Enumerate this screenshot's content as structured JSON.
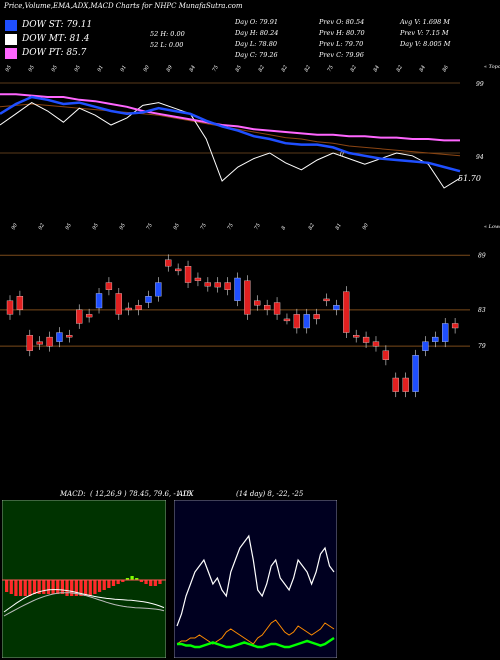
{
  "header": {
    "title": "Price,Volume,EMA,ADX,MACD Charts for NHPC MunafaSutra.com"
  },
  "legend": [
    {
      "label": "DOW ST: 79.11",
      "color": "#1f4fff"
    },
    {
      "label": "DOW MT: 81.4",
      "color": "#ffffff"
    },
    {
      "label": "DOW PT: 85.7",
      "color": "#ff66ff"
    }
  ],
  "stats": {
    "col1": [
      "",
      "52 H: 0.00",
      "52 L: 0.00"
    ],
    "col2": [
      "Day O: 79.91",
      "Day H: 80.24",
      "Day L: 78.80",
      "Day C: 79.26"
    ],
    "col3": [
      "Prev O: 80.54",
      "Prev H: 80.70",
      "Prev L: 79.70",
      "Prev C: 79.96"
    ],
    "col4": [
      "Avg V: 1.698 M",
      "Prev V: 7.15 M",
      "Day V: 8.005 M"
    ]
  },
  "ema_panel": {
    "top_labels": [
      "95",
      "95",
      "95",
      "95",
      "91",
      "91",
      "90",
      "89",
      "84",
      "75",
      "85",
      "82",
      "82",
      "82",
      "75",
      "82",
      "84",
      "82",
      "84",
      "86"
    ],
    "right_tag": "« Topo",
    "right_values": [
      "99",
      "51.70",
      "94"
    ],
    "bottom_tag": "0"
  },
  "candle_panel": {
    "top_labels": [
      "90",
      "92",
      "95",
      "95",
      "95",
      "75",
      "95",
      "75",
      "75",
      "75",
      "8",
      "82",
      "81",
      "90"
    ],
    "right_tag": "« Lowe",
    "right_values": [
      "89",
      "83",
      "79"
    ]
  },
  "macd": {
    "title": "MACD:",
    "params": "( 12,26,9 ) 78.45, 79.6, -1.15"
  },
  "adx": {
    "title": "ADX",
    "params": "(14 day) 8, -22, -25"
  },
  "chart_data": [
    {
      "type": "candlestick",
      "title": "Price",
      "right_axis_ticks": [
        89,
        83,
        79
      ],
      "ohlc": [
        {
          "o": 84.0,
          "c": 82.5,
          "color": "red"
        },
        {
          "o": 83.0,
          "c": 84.5,
          "color": "red"
        },
        {
          "o": 80.2,
          "c": 78.5,
          "color": "red"
        },
        {
          "o": 79.5,
          "c": 79.2,
          "color": "red"
        },
        {
          "o": 80.0,
          "c": 79.0,
          "color": "red"
        },
        {
          "o": 79.5,
          "c": 80.5,
          "color": "blue"
        },
        {
          "o": 80.0,
          "c": 80.2,
          "color": "red"
        },
        {
          "o": 83.0,
          "c": 81.5,
          "color": "red"
        },
        {
          "o": 82.5,
          "c": 82.2,
          "color": "red"
        },
        {
          "o": 83.2,
          "c": 84.8,
          "color": "blue"
        },
        {
          "o": 86.0,
          "c": 85.2,
          "color": "red"
        },
        {
          "o": 84.8,
          "c": 82.5,
          "color": "red"
        },
        {
          "o": 83.0,
          "c": 83.2,
          "color": "red"
        },
        {
          "o": 83.5,
          "c": 83.0,
          "color": "red"
        },
        {
          "o": 83.8,
          "c": 84.5,
          "color": "blue"
        },
        {
          "o": 84.5,
          "c": 86.0,
          "color": "blue"
        },
        {
          "o": 88.5,
          "c": 87.8,
          "color": "red"
        },
        {
          "o": 87.5,
          "c": 87.4,
          "color": "red"
        },
        {
          "o": 87.8,
          "c": 86.0,
          "color": "red"
        },
        {
          "o": 86.5,
          "c": 86.2,
          "color": "red"
        },
        {
          "o": 86.0,
          "c": 85.6,
          "color": "red"
        },
        {
          "o": 86.0,
          "c": 85.5,
          "color": "red"
        },
        {
          "o": 86.0,
          "c": 85.2,
          "color": "red"
        },
        {
          "o": 84.0,
          "c": 86.5,
          "color": "blue"
        },
        {
          "o": 86.2,
          "c": 82.5,
          "color": "red"
        },
        {
          "o": 84.0,
          "c": 83.5,
          "color": "red"
        },
        {
          "o": 83.5,
          "c": 83.0,
          "color": "red"
        },
        {
          "o": 83.8,
          "c": 82.5,
          "color": "red"
        },
        {
          "o": 82.0,
          "c": 82.0,
          "color": "red"
        },
        {
          "o": 82.5,
          "c": 81.0,
          "color": "red"
        },
        {
          "o": 81.0,
          "c": 82.5,
          "color": "blue"
        },
        {
          "o": 82.0,
          "c": 82.5,
          "color": "red"
        },
        {
          "o": 84.2,
          "c": 84.0,
          "color": "red"
        },
        {
          "o": 83.0,
          "c": 83.5,
          "color": "blue"
        },
        {
          "o": 85.0,
          "c": 80.5,
          "color": "red"
        },
        {
          "o": 80.2,
          "c": 80.0,
          "color": "red"
        },
        {
          "o": 80.0,
          "c": 79.4,
          "color": "red"
        },
        {
          "o": 79.5,
          "c": 79.0,
          "color": "red"
        },
        {
          "o": 78.5,
          "c": 77.5,
          "color": "red"
        },
        {
          "o": 75.5,
          "c": 74.0,
          "color": "red"
        },
        {
          "o": 75.5,
          "c": 74.0,
          "color": "red"
        },
        {
          "o": 74.0,
          "c": 78.0,
          "color": "blue"
        },
        {
          "o": 78.5,
          "c": 79.5,
          "color": "blue"
        },
        {
          "o": 80.0,
          "c": 79.5,
          "color": "blue"
        },
        {
          "o": 79.5,
          "c": 81.5,
          "color": "blue"
        },
        {
          "o": 81.5,
          "c": 81.0,
          "color": "red"
        }
      ]
    },
    {
      "type": "line",
      "title": "EMA",
      "right_axis_ticks": [
        99,
        94
      ],
      "series": [
        {
          "color": "#1f4fff",
          "values": [
            96.8,
            97.5,
            98.0,
            97.8,
            97.5,
            97.6,
            97.3,
            97.0,
            96.8,
            96.9,
            97.2,
            97.0,
            96.8,
            96.3,
            95.9,
            95.6,
            95.2,
            95.0,
            94.7,
            94.6,
            94.6,
            94.4,
            94.0,
            93.8,
            93.6,
            93.5,
            93.4,
            93.3,
            93.0,
            92.7
          ]
        },
        {
          "color": "#ff66ff",
          "values": [
            98.2,
            98.2,
            98.1,
            98.0,
            98.0,
            97.8,
            97.7,
            97.5,
            97.3,
            97.0,
            96.8,
            96.6,
            96.4,
            96.2,
            96.0,
            95.9,
            95.7,
            95.6,
            95.5,
            95.4,
            95.3,
            95.3,
            95.2,
            95.2,
            95.1,
            95.1,
            95.0,
            95.0,
            94.9,
            94.9
          ]
        },
        {
          "color": "#ffffff",
          "values": [
            96.0,
            96.8,
            97.6,
            97.0,
            96.2,
            97.2,
            96.7,
            96.0,
            96.5,
            97.4,
            97.6,
            97.2,
            96.8,
            95.0,
            92.0,
            93.0,
            93.6,
            94.0,
            93.3,
            92.8,
            93.5,
            94.0,
            93.6,
            93.2,
            93.6,
            94.0,
            93.8,
            93.2,
            91.5,
            92.2
          ]
        },
        {
          "color": "#8b4513",
          "values": [
            97.3,
            97.4,
            97.5,
            97.4,
            97.3,
            97.2,
            97.1,
            97.0,
            96.9,
            96.8,
            96.7,
            96.5,
            96.3,
            96.1,
            95.9,
            95.7,
            95.5,
            95.3,
            95.1,
            95.0,
            94.8,
            94.7,
            94.5,
            94.4,
            94.3,
            94.2,
            94.1,
            94.0,
            93.9,
            93.8
          ]
        }
      ]
    },
    {
      "type": "bar+line",
      "title": "MACD",
      "series": [
        {
          "name": "histogram",
          "values": [
            -6,
            -7,
            -8,
            -8,
            -8,
            -8,
            -7,
            -7,
            -7,
            -7,
            -7,
            -7,
            -7,
            -8,
            -8,
            -8,
            -8,
            -8,
            -8,
            -7,
            -6,
            -5,
            -4,
            -3,
            -2,
            -1,
            1,
            2,
            1,
            -1,
            -2,
            -3,
            -3,
            -2
          ]
        }
      ]
    },
    {
      "type": "line",
      "title": "ADX",
      "series": [
        {
          "name": "+DI",
          "color": "#ffffff",
          "values": [
            8,
            12,
            18,
            22,
            26,
            28,
            30,
            26,
            22,
            24,
            20,
            18,
            26,
            30,
            34,
            36,
            38,
            30,
            20,
            18,
            22,
            28,
            30,
            24,
            22,
            20,
            24,
            30,
            28,
            26,
            22,
            26,
            32,
            34,
            28,
            26
          ]
        },
        {
          "name": "-DI",
          "color": "#ff8c00",
          "values": [
            2,
            3,
            3,
            4,
            4,
            5,
            4,
            3,
            2,
            3,
            4,
            6,
            7,
            6,
            5,
            4,
            3,
            2,
            4,
            5,
            7,
            9,
            10,
            8,
            6,
            5,
            6,
            8,
            7,
            6,
            5,
            6,
            7,
            9,
            8,
            7
          ]
        },
        {
          "name": "ADX",
          "color": "#00ff00",
          "values": [
            2,
            2,
            1.5,
            1.5,
            1,
            1,
            1.5,
            2,
            2.5,
            2,
            1.5,
            1,
            1,
            1.5,
            2,
            2.5,
            2,
            1.5,
            1,
            1,
            1.5,
            2,
            2,
            1.5,
            1,
            1,
            1.5,
            2,
            2.5,
            3,
            2.5,
            2,
            1.5,
            2,
            3,
            4
          ]
        }
      ]
    }
  ]
}
